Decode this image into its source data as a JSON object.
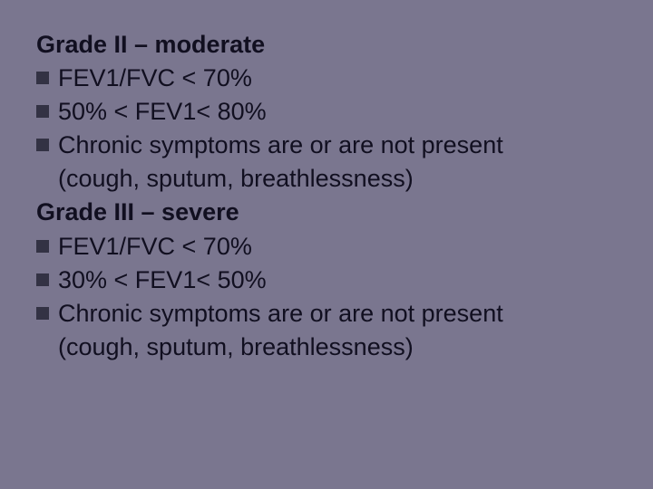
{
  "colors": {
    "background": "#7a768f",
    "text": "#110f20",
    "bullet": "#333244"
  },
  "typography": {
    "font_family": "Arial",
    "font_size_pt": 20,
    "font_weight_heading": 700,
    "font_weight_body": 400,
    "line_height": 1.3
  },
  "sections": [
    {
      "heading": "Grade II – moderate",
      "items": [
        {
          "text": "FEV1/FVC < 70%"
        },
        {
          "text": "50%  < FEV1< 80%"
        },
        {
          "text": "Chronic symptoms are or are not present",
          "cont": "(cough, sputum, breathlessness)"
        }
      ]
    },
    {
      "heading": "Grade III – severe",
      "items": [
        {
          "text": "FEV1/FVC < 70%"
        },
        {
          "text": "30%  < FEV1< 50%"
        },
        {
          "text": "Chronic symptoms are or are not present",
          "cont": "(cough, sputum, breathlessness)"
        }
      ]
    }
  ]
}
